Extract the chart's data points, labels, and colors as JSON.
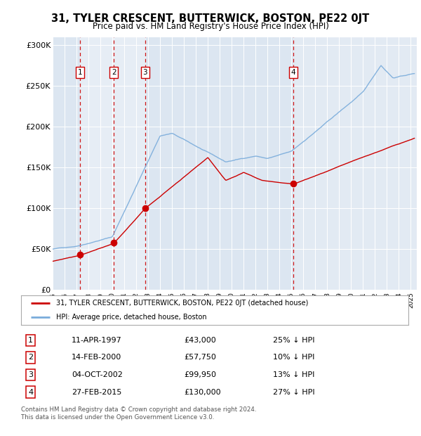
{
  "title": "31, TYLER CRESCENT, BUTTERWICK, BOSTON, PE22 0JT",
  "subtitle": "Price paid vs. HM Land Registry's House Price Index (HPI)",
  "ylabel_ticks": [
    "£0",
    "£50K",
    "£100K",
    "£150K",
    "£200K",
    "£250K",
    "£300K"
  ],
  "ytick_values": [
    0,
    50000,
    100000,
    150000,
    200000,
    250000,
    300000
  ],
  "ylim": [
    0,
    310000
  ],
  "xlim_start": 1995.0,
  "xlim_end": 2025.5,
  "background_color": "#dce6f1",
  "plot_bg_color": "#dce6f1",
  "hpi_color": "#7aacdb",
  "price_color": "#cc0000",
  "grid_color": "#ffffff",
  "highlight_color": "#c8d8ea",
  "transactions": [
    {
      "num": 1,
      "date_str": "11-APR-1997",
      "date_x": 1997.28,
      "price": 43000,
      "label": "25% ↓ HPI"
    },
    {
      "num": 2,
      "date_str": "14-FEB-2000",
      "date_x": 2000.12,
      "price": 57750,
      "label": "10% ↓ HPI"
    },
    {
      "num": 3,
      "date_str": "04-OCT-2002",
      "date_x": 2002.75,
      "price": 99950,
      "label": "13% ↓ HPI"
    },
    {
      "num": 4,
      "date_str": "27-FEB-2015",
      "date_x": 2015.15,
      "price": 130000,
      "label": "27% ↓ HPI"
    }
  ],
  "legend_label_price": "31, TYLER CRESCENT, BUTTERWICK, BOSTON, PE22 0JT (detached house)",
  "legend_label_hpi": "HPI: Average price, detached house, Boston",
  "footer_line1": "Contains HM Land Registry data © Crown copyright and database right 2024.",
  "footer_line2": "This data is licensed under the Open Government Licence v3.0."
}
